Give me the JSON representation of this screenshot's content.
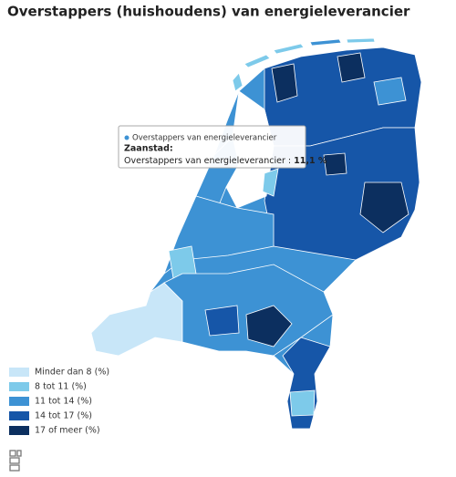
{
  "header": {
    "title": "Overstappers (huishoudens) van energieleverancier"
  },
  "tooltip": {
    "series": "Overstappers van energieleverancier",
    "region": "Zaanstad:",
    "label": "Overstappers van energieleverancier :",
    "value": "11,1 %"
  },
  "legend": {
    "items": [
      {
        "label": "Minder dan 8 (%)",
        "color": "#c8e6f8"
      },
      {
        "label": "8 tot 11 (%)",
        "color": "#7dcaea"
      },
      {
        "label": "11 tot 14 (%)",
        "color": "#3d92d4"
      },
      {
        "label": "14 tot 17 (%)",
        "color": "#1656a8"
      },
      {
        "label": "17 of meer (%)",
        "color": "#0c2f5f"
      }
    ]
  }
}
